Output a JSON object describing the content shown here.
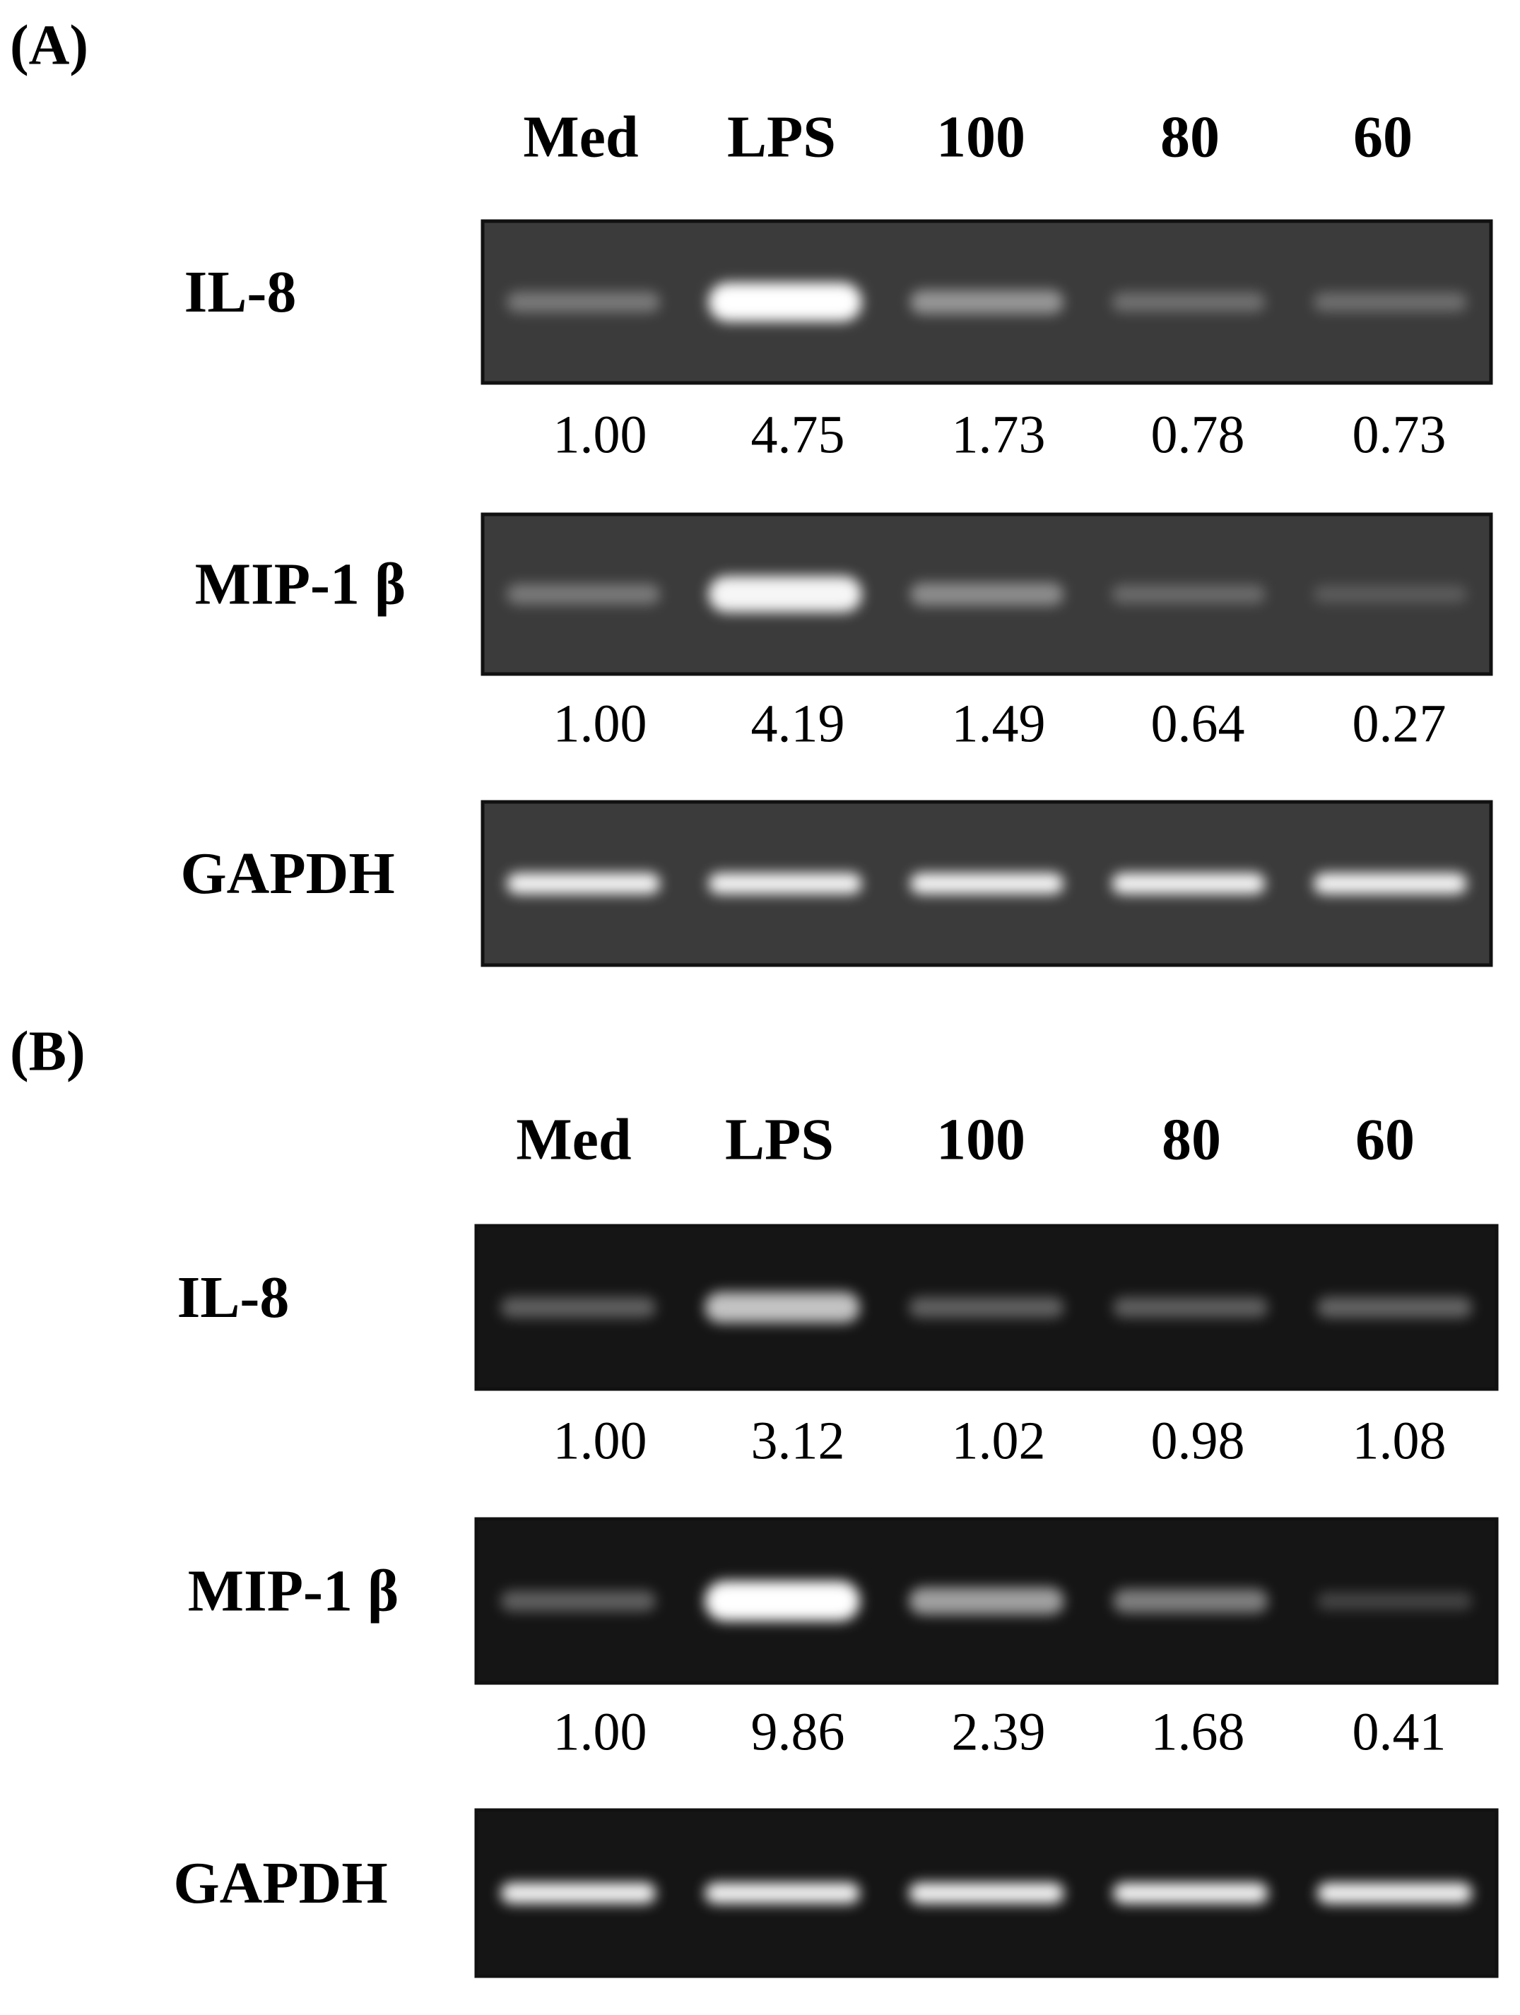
{
  "panels": [
    {
      "label": "(A)",
      "lanes": [
        "Med",
        "LPS",
        "100",
        "80",
        "60"
      ],
      "rows": [
        {
          "gene": "IL-8",
          "values": [
            "1.00",
            "4.75",
            "1.73",
            "0.78",
            "0.73"
          ]
        },
        {
          "gene": "MIP-1 β",
          "values": [
            "1.00",
            "4.19",
            "1.49",
            "0.64",
            "0.27"
          ]
        },
        {
          "gene": "GAPDH"
        }
      ]
    },
    {
      "label": "(B)",
      "lanes": [
        "Med",
        "LPS",
        "100",
        "80",
        "60"
      ],
      "rows": [
        {
          "gene": "IL-8",
          "values": [
            "1.00",
            "3.12",
            "1.02",
            "0.98",
            "1.08"
          ]
        },
        {
          "gene": "MIP-1 β",
          "values": [
            "1.00",
            "9.86",
            "2.39",
            "1.68",
            "0.41"
          ]
        },
        {
          "gene": "GAPDH"
        }
      ]
    }
  ]
}
